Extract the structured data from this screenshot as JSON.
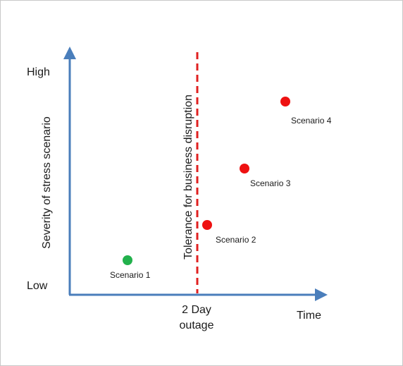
{
  "chart_data": {
    "type": "scatter",
    "title": "",
    "ylabel": "Severity of stress scenario",
    "xlabel": "Time",
    "y_ticks": {
      "high": "High",
      "low": "Low"
    },
    "threshold": {
      "x_label_line1": "2 Day",
      "x_label_line2": "outage",
      "line_label": "Tolerance for business disruption",
      "color": "#e02020"
    },
    "points": [
      {
        "name": "Scenario 1",
        "color": "#22b14c"
      },
      {
        "name": "Scenario 2",
        "color": "#ee1111"
      },
      {
        "name": "Scenario 3",
        "color": "#ee1111"
      },
      {
        "name": "Scenario 4",
        "color": "#ee1111"
      }
    ],
    "axis_color": "#4a7ebb"
  }
}
